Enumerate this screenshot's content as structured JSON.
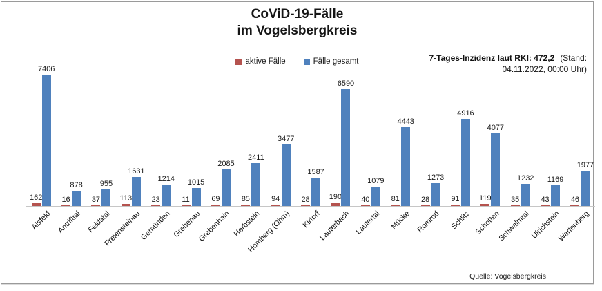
{
  "title": {
    "line1": "CoViD-19-Fälle",
    "line2": "im Vogelsbergkreis"
  },
  "incidence": {
    "label": "7-Tages-Inzidenz laut RKI: 472,2",
    "stand_line1": "(Stand:",
    "stand_line2": "04.11.2022, 00:00 Uhr)"
  },
  "source": "Quelle: Vogelsbergkreis",
  "chart_data": {
    "type": "bar",
    "title": "CoViD-19-Fälle im Vogelsbergkreis",
    "categories": [
      "Alsfeld",
      "Antrifttal",
      "Feldatal",
      "Freiensteinau",
      "Gemünden",
      "Grebenau",
      "Grebenhain",
      "Herbstein",
      "Homberg (Ohm)",
      "Kirtorf",
      "Lauterbach",
      "Lautertal",
      "Mücke",
      "Romrod",
      "Schlitz",
      "Schotten",
      "Schwalmtal",
      "Ulrichstein",
      "Wartenberg"
    ],
    "series": [
      {
        "name": "aktive Fälle",
        "color": "#b5534f",
        "values": [
          162,
          16,
          37,
          113,
          23,
          11,
          69,
          85,
          94,
          28,
          190,
          40,
          81,
          28,
          91,
          119,
          35,
          43,
          46
        ]
      },
      {
        "name": "Fälle gesamt",
        "color": "#4f81bd",
        "values": [
          7406,
          878,
          955,
          1631,
          1214,
          1015,
          2085,
          2411,
          3477,
          1587,
          6590,
          1079,
          4443,
          1273,
          4916,
          4077,
          1232,
          1169,
          1977
        ]
      }
    ],
    "ylim": [
      0,
      7500
    ],
    "grid": false,
    "legend_position": "top-center",
    "value_labels": true,
    "annotation": "7-Tages-Inzidenz laut RKI: 472,2 (Stand: 04.11.2022, 00:00 Uhr)",
    "source_note": "Quelle: Vogelsbergkreis"
  }
}
